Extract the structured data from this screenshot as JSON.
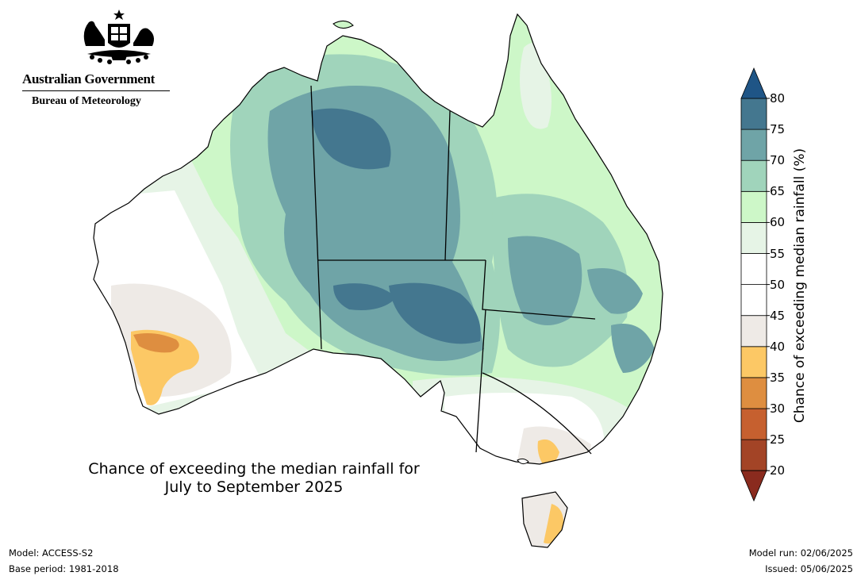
{
  "logo": {
    "government": "Australian Government",
    "bureau": "Bureau of Meteorology"
  },
  "map": {
    "title_line1": "Chance of exceeding the median rainfall for",
    "title_line2": "July to September 2025"
  },
  "colorbar": {
    "label": "Chance of exceeding median rainfall (%)",
    "ticks": [
      "80",
      "75",
      "70",
      "65",
      "60",
      "55",
      "50",
      "45",
      "40",
      "35",
      "30",
      "25",
      "20"
    ],
    "bins": [
      {
        "range": "20-25",
        "color": "#a34426"
      },
      {
        "range": "25-30",
        "color": "#c6602f"
      },
      {
        "range": "30-35",
        "color": "#de8e40"
      },
      {
        "range": "35-40",
        "color": "#fcc865"
      },
      {
        "range": "40-45",
        "color": "#eeeae6"
      },
      {
        "range": "45-50",
        "color": "#ffffff"
      },
      {
        "range": "50-55",
        "color": "#ffffff"
      },
      {
        "range": "55-60",
        "color": "#e6f4e6"
      },
      {
        "range": "60-65",
        "color": "#cdf7c8"
      },
      {
        "range": "65-70",
        "color": "#a0d4bb"
      },
      {
        "range": "70-75",
        "color": "#6fa4a7"
      },
      {
        "range": "75-80",
        "color": "#44778f"
      }
    ],
    "over_color": "#1f5586",
    "under_color": "#8a2b1e"
  },
  "footer": {
    "model": "Model: ACCESS-S2",
    "base_period": "Base period: 1981-2018",
    "model_run": "Model run: 02/06/2025",
    "issued": "Issued: 05/06/2025"
  }
}
